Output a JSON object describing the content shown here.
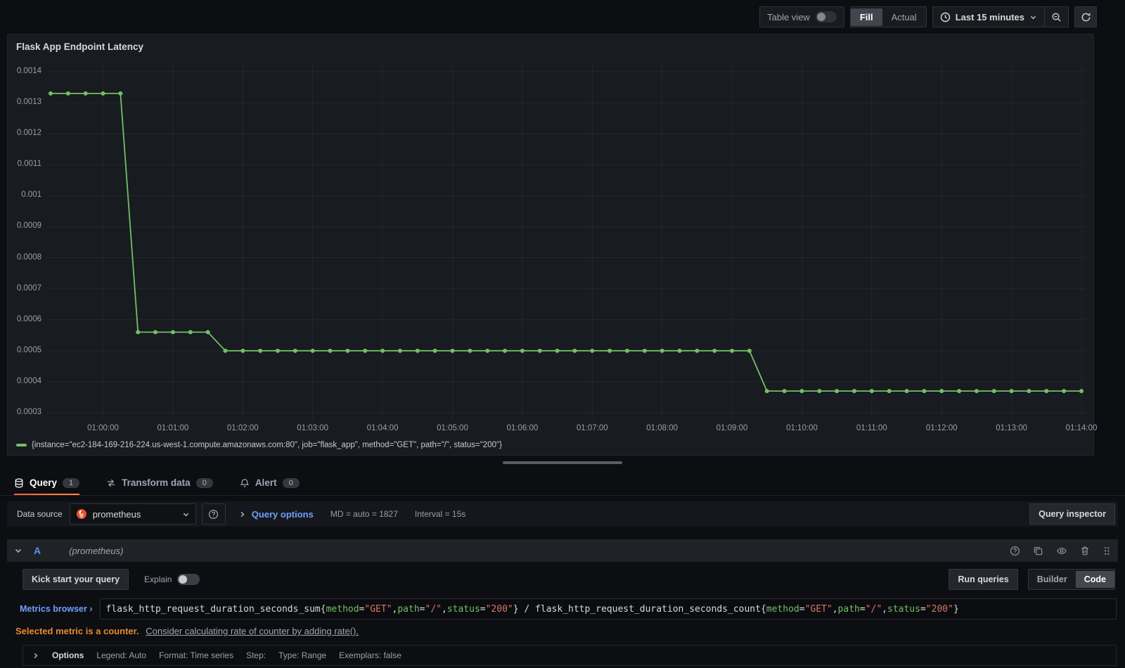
{
  "toolbar": {
    "table_view_label": "Table view",
    "fill_label": "Fill",
    "actual_label": "Actual",
    "time_range_label": "Last 15 minutes"
  },
  "panel": {
    "title": "Flask App Endpoint Latency"
  },
  "chart_data": {
    "type": "line",
    "title": "Flask App Endpoint Latency",
    "series_color": "#73bf69",
    "grid": true,
    "ylim": [
      0.0003,
      0.0014
    ],
    "y_ticks": [
      "0.0014",
      "0.0013",
      "0.0012",
      "0.0011",
      "0.001",
      "0.0009",
      "0.0008",
      "0.0007",
      "0.0006",
      "0.0005",
      "0.0004",
      "0.0003"
    ],
    "x_ticks": [
      "01:00:00",
      "01:01:00",
      "01:02:00",
      "01:03:00",
      "01:04:00",
      "01:05:00",
      "01:06:00",
      "01:07:00",
      "01:08:00",
      "01:09:00",
      "01:10:00",
      "01:11:00",
      "01:12:00",
      "01:13:00",
      "01:14:00"
    ],
    "time_range": [
      "00:59:12",
      "01:14:03"
    ],
    "step_seconds": 15,
    "segments": [
      {
        "from": "00:59:15",
        "to": "01:00:15",
        "value": 0.00133
      },
      {
        "from": "01:00:30",
        "to": "01:01:30",
        "value": 0.00056
      },
      {
        "from": "01:01:45",
        "to": "01:09:15",
        "value": 0.0005
      },
      {
        "from": "01:09:30",
        "to": "01:14:00",
        "value": 0.00037
      }
    ],
    "legend": [
      {
        "label": "{instance=\"ec2-184-169-216-224.us-west-1.compute.amazonaws.com:80\", job=\"flask_app\", method=\"GET\", path=\"/\", status=\"200\"}",
        "color": "#73bf69"
      }
    ],
    "legend_position": "bottom-left"
  },
  "tabs": {
    "query": {
      "label": "Query",
      "badge": "1"
    },
    "transform": {
      "label": "Transform data",
      "badge": "0"
    },
    "alert": {
      "label": "Alert",
      "badge": "0"
    }
  },
  "datasource_row": {
    "label": "Data source",
    "value": "prometheus",
    "query_options_label": "Query options",
    "md_text": "MD = auto = 1827",
    "interval_text": "Interval = 15s",
    "query_inspector_label": "Query inspector"
  },
  "query_editor": {
    "ref_id": "A",
    "datasource_name": "(prometheus)",
    "kick_start_label": "Kick start your query",
    "explain_label": "Explain",
    "run_queries_label": "Run queries",
    "builder_label": "Builder",
    "code_label": "Code",
    "metrics_browser_label": "Metrics browser ›",
    "query_tokens": [
      {
        "text": "flask_http_request_duration_seconds_sum{",
        "type": "plain"
      },
      {
        "text": "method",
        "type": "label"
      },
      {
        "text": "=",
        "type": "plain"
      },
      {
        "text": "\"GET\"",
        "type": "string"
      },
      {
        "text": ",",
        "type": "plain"
      },
      {
        "text": "path",
        "type": "label"
      },
      {
        "text": "=",
        "type": "plain"
      },
      {
        "text": "\"/\"",
        "type": "string"
      },
      {
        "text": ",",
        "type": "plain"
      },
      {
        "text": "status",
        "type": "label"
      },
      {
        "text": "=",
        "type": "plain"
      },
      {
        "text": "\"200\"",
        "type": "string"
      },
      {
        "text": "} / flask_http_request_duration_seconds_count{",
        "type": "plain"
      },
      {
        "text": "method",
        "type": "label"
      },
      {
        "text": "=",
        "type": "plain"
      },
      {
        "text": "\"GET\"",
        "type": "string"
      },
      {
        "text": ",",
        "type": "plain"
      },
      {
        "text": "path",
        "type": "label"
      },
      {
        "text": "=",
        "type": "plain"
      },
      {
        "text": "\"/\"",
        "type": "string"
      },
      {
        "text": ",",
        "type": "plain"
      },
      {
        "text": "status",
        "type": "label"
      },
      {
        "text": "=",
        "type": "plain"
      },
      {
        "text": "\"200\"",
        "type": "string"
      },
      {
        "text": "}",
        "type": "plain"
      }
    ],
    "warning_bold": "Selected metric is a counter.",
    "warning_link": "Consider calculating rate of counter by adding rate().",
    "options_label": "Options",
    "options_summary": [
      "Legend: Auto",
      "Format: Time series",
      "Step:",
      "Type: Range",
      "Exemplars: false"
    ]
  },
  "colors": {
    "series_green": "#73bf69",
    "accent_orange": "#ff780a",
    "link_blue": "#6e9fff",
    "ref_id_blue": "#5794f2",
    "warning_orange": "#e78a31",
    "prometheus_orange": "#e6522c"
  }
}
